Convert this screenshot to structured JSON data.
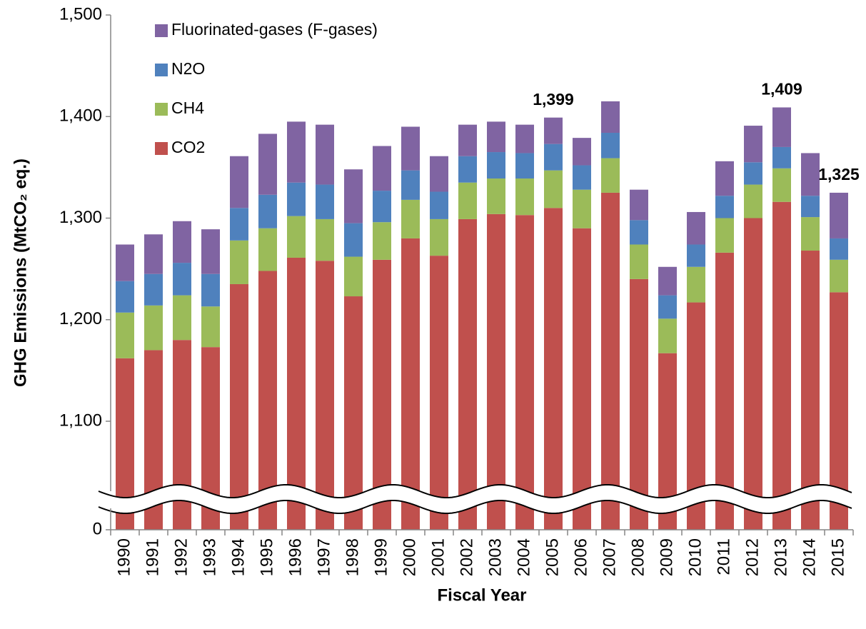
{
  "chart_data": {
    "type": "stacked_bar",
    "x_label": "Fiscal Year",
    "y_label": "GHG Emissions (MtCO₂ eq.)",
    "categories": [
      "1990",
      "1991",
      "1992",
      "1993",
      "1994",
      "1995",
      "1996",
      "1997",
      "1998",
      "1999",
      "2000",
      "2001",
      "2002",
      "2003",
      "2004",
      "2005",
      "2006",
      "2007",
      "2008",
      "2009",
      "2010",
      "2011",
      "2012",
      "2013",
      "2014",
      "2015"
    ],
    "series": [
      {
        "name": "CO2",
        "color": "#c0504d",
        "values": [
          1162,
          1170,
          1180,
          1173,
          1235,
          1248,
          1261,
          1258,
          1223,
          1259,
          1280,
          1263,
          1299,
          1304,
          1303,
          1310,
          1290,
          1325,
          1240,
          1167,
          1217,
          1266,
          1300,
          1316,
          1268,
          1227
        ]
      },
      {
        "name": "CH4",
        "color": "#9bbb59",
        "values": [
          45,
          44,
          44,
          40,
          43,
          42,
          41,
          41,
          39,
          37,
          38,
          36,
          36,
          35,
          36,
          37,
          38,
          34,
          34,
          34,
          35,
          34,
          33,
          33,
          33,
          32
        ]
      },
      {
        "name": "N2O",
        "color": "#4f81bd",
        "values": [
          31,
          31,
          32,
          32,
          32,
          33,
          33,
          34,
          33,
          31,
          29,
          27,
          26,
          26,
          25,
          26,
          24,
          25,
          24,
          23,
          22,
          22,
          22,
          21,
          21,
          21
        ]
      },
      {
        "name": "Fluorinated-gases (F-gases)",
        "color": "#8064a2",
        "values": [
          36,
          39,
          41,
          44,
          51,
          60,
          60,
          59,
          53,
          44,
          43,
          35,
          31,
          30,
          28,
          26,
          27,
          31,
          30,
          28,
          32,
          34,
          36,
          39,
          42,
          45
        ]
      }
    ],
    "annotations": [
      {
        "category": "2005",
        "value": 1399,
        "label": "1,399"
      },
      {
        "category": "2013",
        "value": 1409,
        "label": "1,409"
      },
      {
        "category": "2015",
        "value": 1325,
        "label": "1,325"
      }
    ],
    "ylim": [
      0,
      1500
    ],
    "yticks": [
      0,
      {
        "value": 1100,
        "label": "1,100"
      },
      {
        "value": 1200,
        "label": "1,200"
      },
      {
        "value": 1300,
        "label": "1,300"
      },
      {
        "value": 1400,
        "label": "1,400"
      },
      {
        "value": 1500,
        "label": "1,500"
      }
    ],
    "axis_break": true,
    "legend": "top-left"
  }
}
